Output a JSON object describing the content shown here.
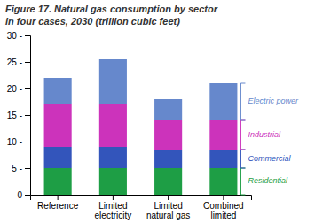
{
  "chart_data": {
    "type": "bar",
    "stacked": true,
    "grid": false,
    "title": "Figure 17. Natural gas consumption by sector",
    "subtitle": "in four cases, 2030 (trillion cubic feet)",
    "categories": [
      "Reference",
      "Limited\nelectricity",
      "Limited\nnatural gas",
      "Combined\nlimited"
    ],
    "series": [
      {
        "name": "Residential",
        "color": "#1e9e45",
        "values": [
          5.0,
          5.0,
          5.0,
          5.0
        ]
      },
      {
        "name": "Commercial",
        "color": "#3355bb",
        "values": [
          4.0,
          4.0,
          3.5,
          3.5
        ]
      },
      {
        "name": "Industrial",
        "color": "#cc33bb",
        "values": [
          8.0,
          8.0,
          5.5,
          5.5
        ]
      },
      {
        "name": "Electric power",
        "color": "#6688cc",
        "values": [
          5.0,
          8.5,
          4.0,
          7.0
        ]
      }
    ],
    "ylim": [
      0,
      30
    ],
    "yticks": [
      0,
      {
        "value": 5,
        "label": "5 -"
      },
      {
        "value": 10,
        "label": "10 -"
      },
      {
        "value": 15,
        "label": "15 -"
      },
      {
        "value": 20,
        "label": "20 -"
      },
      {
        "value": 25,
        "label": "25 -"
      },
      {
        "value": 30,
        "label": "30 -"
      }
    ]
  }
}
